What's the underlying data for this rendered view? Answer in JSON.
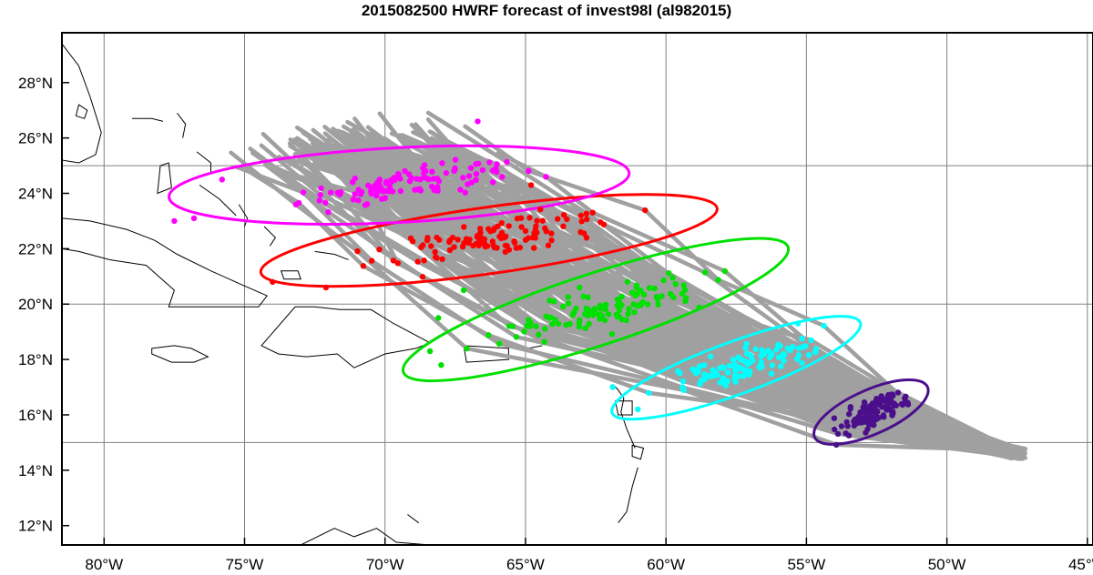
{
  "title": "2015082500 HWRF forecast of invest98l (al982015)",
  "map": {
    "lon_range": [
      -81.5,
      -44.8
    ],
    "lat_range": [
      11.3,
      29.8
    ],
    "x_ticks": [
      {
        "lon": -80,
        "label": "80°W"
      },
      {
        "lon": -75,
        "label": "75°W"
      },
      {
        "lon": -70,
        "label": "70°W"
      },
      {
        "lon": -65,
        "label": "65°W"
      },
      {
        "lon": -60,
        "label": "60°W"
      },
      {
        "lon": -55,
        "label": "55°W"
      },
      {
        "lon": -50,
        "label": "50°W"
      },
      {
        "lon": -45,
        "label": "45°W"
      }
    ],
    "y_ticks": [
      {
        "lat": 28,
        "label": "28°N"
      },
      {
        "lat": 26,
        "label": "26°N"
      },
      {
        "lat": 24,
        "label": "24°N"
      },
      {
        "lat": 22,
        "label": "22°N"
      },
      {
        "lat": 20,
        "label": "20°N"
      },
      {
        "lat": 18,
        "label": "18°N"
      },
      {
        "lat": 16,
        "label": "16°N"
      },
      {
        "lat": 14,
        "label": "14°N"
      },
      {
        "lat": 12,
        "label": "12°N"
      }
    ],
    "grid_lons": [
      -80,
      -75,
      -70,
      -65,
      -60,
      -55,
      -50,
      -45
    ],
    "grid_lats": [
      15,
      20,
      25
    ],
    "grid": true,
    "grid_color": "#808080",
    "track_color": "#a0a0a0",
    "coast_color": "#000000"
  },
  "forecast": {
    "start": {
      "lon": -47.5,
      "lat": 14.6
    },
    "groups": [
      {
        "color": "#4b0f8c",
        "center": {
          "lon": -52.7,
          "lat": 16.1
        },
        "spread": {
          "lon": 1.1,
          "lat": 0.7
        },
        "count": 80,
        "ellipse": {
          "lon": -52.7,
          "lat": 16.1,
          "a": 2.2,
          "b": 0.8,
          "angle_deg": 24
        }
      },
      {
        "color": "#00ffff",
        "center": {
          "lon": -57.5,
          "lat": 17.7
        },
        "spread": {
          "lon": 2.3,
          "lat": 0.8
        },
        "count": 110,
        "ellipse": {
          "lon": -57.5,
          "lat": 17.7,
          "a": 4.7,
          "b": 0.95,
          "angle_deg": 20
        }
      },
      {
        "color": "#00e000",
        "center": {
          "lon": -62.5,
          "lat": 19.8
        },
        "spread": {
          "lon": 3.2,
          "lat": 1.0
        },
        "count": 110,
        "ellipse": {
          "lon": -62.5,
          "lat": 19.8,
          "a": 7.2,
          "b": 1.3,
          "angle_deg": 18
        }
      },
      {
        "color": "#ff0000",
        "center": {
          "lon": -66.3,
          "lat": 22.3
        },
        "spread": {
          "lon": 3.6,
          "lat": 0.8
        },
        "count": 110,
        "ellipse": {
          "lon": -66.3,
          "lat": 22.3,
          "a": 8.2,
          "b": 1.2,
          "angle_deg": 8
        }
      },
      {
        "color": "#ff00ff",
        "center": {
          "lon": -69.5,
          "lat": 24.3
        },
        "spread": {
          "lon": 3.4,
          "lat": 0.7
        },
        "count": 110,
        "ellipse": {
          "lon": -69.5,
          "lat": 24.3,
          "a": 8.2,
          "b": 1.35,
          "angle_deg": 3
        }
      }
    ],
    "outliers": [
      {
        "color": "#ff00ff",
        "lon": -77.5,
        "lat": 23.0
      },
      {
        "color": "#ff00ff",
        "lon": -76.8,
        "lat": 23.1
      },
      {
        "color": "#ff00ff",
        "lon": -75.8,
        "lat": 24.5
      },
      {
        "color": "#ff00ff",
        "lon": -66.7,
        "lat": 26.6
      },
      {
        "color": "#ff0000",
        "lon": -72.1,
        "lat": 20.6
      },
      {
        "color": "#ff0000",
        "lon": -74.0,
        "lat": 20.8
      },
      {
        "color": "#ff0000",
        "lon": -64.8,
        "lat": 24.3
      },
      {
        "color": "#00e000",
        "lon": -68.0,
        "lat": 17.8
      },
      {
        "color": "#00e000",
        "lon": -68.4,
        "lat": 18.3
      },
      {
        "color": "#00e000",
        "lon": -67.2,
        "lat": 20.5
      },
      {
        "color": "#00e000",
        "lon": -68.1,
        "lat": 19.5
      },
      {
        "color": "#00ffff",
        "lon": -61.0,
        "lat": 16.2
      },
      {
        "color": "#00ffff",
        "lon": -61.9,
        "lat": 17.0
      },
      {
        "color": "#00ffff",
        "lon": -55.3,
        "lat": 19.3
      }
    ]
  }
}
